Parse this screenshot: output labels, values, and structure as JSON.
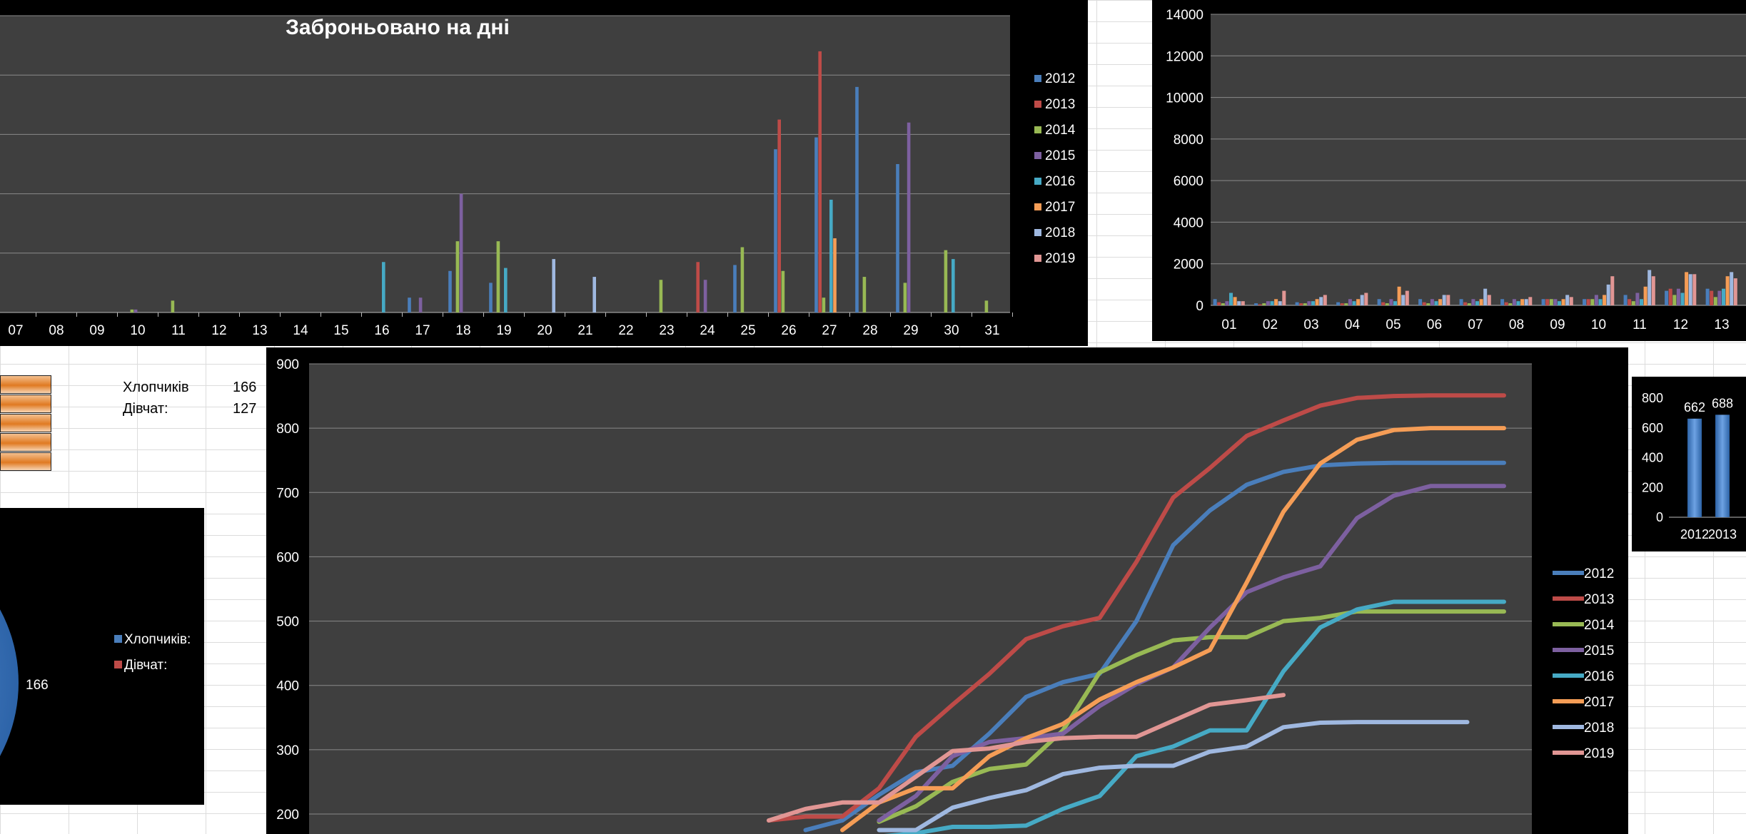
{
  "colors": {
    "2012": "#4a7ebb",
    "2013": "#be4b48",
    "2014": "#98b954",
    "2015": "#7d60a0",
    "2016": "#46aac5",
    "2017": "#f59d56",
    "2018": "#9fb8e0",
    "2019": "#e19694",
    "plot_bg": "#3f3f3f",
    "panel_bg": "#000000",
    "grid": "#8a8a8a"
  },
  "sheet": {
    "boys_label": "Хлопчиків",
    "boys_value": "166",
    "girls_label": "Дівчат:",
    "girls_value": "127"
  },
  "chart_data": [
    {
      "id": "days_chart",
      "type": "bar",
      "title": "Заброньовано на дні",
      "categories": [
        "07",
        "08",
        "09",
        "10",
        "11",
        "12",
        "13",
        "14",
        "15",
        "16",
        "17",
        "18",
        "19",
        "20",
        "21",
        "22",
        "23",
        "24",
        "25",
        "26",
        "27",
        "28",
        "29",
        "30",
        "31"
      ],
      "legend_position": "right",
      "grid": true,
      "series": [
        {
          "name": "2012",
          "values": [
            0,
            0,
            0,
            0,
            0,
            0,
            0,
            0,
            0,
            0,
            5,
            14,
            10,
            0,
            0,
            0,
            0,
            0,
            16,
            55,
            59,
            76,
            50,
            0,
            0
          ]
        },
        {
          "name": "2013",
          "values": [
            0,
            0,
            0,
            0,
            0,
            0,
            0,
            0,
            0,
            0,
            0,
            0,
            0,
            0,
            0,
            0,
            0,
            17,
            0,
            65,
            88,
            0,
            0,
            0,
            0
          ]
        },
        {
          "name": "2014",
          "values": [
            0,
            0,
            0,
            1,
            4,
            0,
            0,
            0,
            0,
            0,
            0,
            24,
            24,
            0,
            0,
            0,
            11,
            0,
            22,
            14,
            5,
            12,
            10,
            21,
            4
          ]
        },
        {
          "name": "2015",
          "values": [
            0,
            0,
            0,
            1,
            0,
            0,
            0,
            0,
            0,
            0,
            5,
            40,
            0,
            0,
            0,
            0,
            0,
            11,
            0,
            0,
            0,
            0,
            64,
            0,
            0
          ]
        },
        {
          "name": "2016",
          "values": [
            0,
            0,
            0,
            0,
            0,
            0,
            0,
            0,
            0,
            17,
            0,
            0,
            15,
            0,
            0,
            0,
            0,
            0,
            0,
            0,
            38,
            0,
            0,
            18,
            0
          ]
        },
        {
          "name": "2017",
          "values": [
            0,
            0,
            0,
            0,
            0,
            0,
            0,
            0,
            0,
            0,
            0,
            0,
            0,
            0,
            0,
            0,
            0,
            0,
            0,
            0,
            25,
            0,
            0,
            0,
            0
          ]
        },
        {
          "name": "2018",
          "values": [
            0,
            0,
            0,
            0,
            0,
            0,
            0,
            0,
            0,
            0,
            0,
            0,
            0,
            18,
            12,
            0,
            0,
            0,
            0,
            0,
            0,
            0,
            0,
            0,
            0
          ]
        },
        {
          "name": "2019",
          "values": [
            0,
            0,
            0,
            0,
            0,
            0,
            0,
            0,
            0,
            0,
            0,
            0,
            0,
            0,
            0,
            0,
            0,
            0,
            0,
            0,
            0,
            0,
            0,
            0,
            0
          ]
        }
      ]
    },
    {
      "id": "months_chart",
      "type": "bar",
      "title": "",
      "ylim": [
        0,
        14000
      ],
      "yticks": [
        0,
        2000,
        4000,
        6000,
        8000,
        10000,
        12000,
        14000
      ],
      "categories": [
        "01",
        "02",
        "03",
        "04",
        "05",
        "06",
        "07",
        "08",
        "09",
        "10",
        "11",
        "12",
        "13"
      ],
      "grid": true,
      "series": [
        {
          "name": "2012",
          "values": [
            300,
            100,
            150,
            150,
            300,
            300,
            300,
            300,
            300,
            300,
            500,
            700,
            800
          ]
        },
        {
          "name": "2013",
          "values": [
            150,
            50,
            100,
            100,
            150,
            150,
            150,
            150,
            300,
            300,
            300,
            800,
            700
          ]
        },
        {
          "name": "2014",
          "values": [
            100,
            100,
            100,
            100,
            100,
            100,
            100,
            100,
            300,
            300,
            200,
            500,
            400
          ]
        },
        {
          "name": "2015",
          "values": [
            200,
            200,
            200,
            300,
            300,
            300,
            300,
            300,
            300,
            500,
            600,
            800,
            700
          ]
        },
        {
          "name": "2016",
          "values": [
            600,
            200,
            200,
            200,
            200,
            200,
            200,
            200,
            200,
            300,
            300,
            600,
            800
          ]
        },
        {
          "name": "2017",
          "values": [
            400,
            300,
            300,
            300,
            900,
            300,
            300,
            300,
            300,
            500,
            900,
            1600,
            1400
          ]
        },
        {
          "name": "2018",
          "values": [
            200,
            200,
            400,
            500,
            500,
            500,
            800,
            300,
            500,
            1000,
            1700,
            1500,
            1600
          ]
        },
        {
          "name": "2019",
          "values": [
            200,
            700,
            500,
            600,
            700,
            500,
            500,
            400,
            400,
            1400,
            1400,
            1500,
            1300
          ]
        }
      ]
    },
    {
      "id": "cumulative_chart",
      "type": "line",
      "title": "",
      "ylim": [
        200,
        900
      ],
      "yticks": [
        200,
        300,
        400,
        500,
        600,
        700,
        800,
        900
      ],
      "legend_position": "right",
      "grid": true,
      "x_count": 33,
      "series": [
        {
          "name": "2012",
          "start": 13,
          "values": [
            175,
            190,
            230,
            265,
            275,
            325,
            382,
            405,
            418,
            500,
            618,
            672,
            712,
            732,
            742,
            745,
            746,
            746,
            746,
            746
          ]
        },
        {
          "name": "2013",
          "start": 12,
          "values": [
            190,
            196,
            196,
            240,
            320,
            370,
            418,
            472,
            492,
            505,
            592,
            692,
            738,
            788,
            812,
            835,
            847,
            850,
            851,
            851,
            851
          ]
        },
        {
          "name": "2014",
          "start": 15,
          "values": [
            188,
            212,
            250,
            270,
            277,
            330,
            420,
            447,
            470,
            475,
            475,
            500,
            505,
            515,
            515,
            515,
            515,
            515
          ]
        },
        {
          "name": "2015",
          "start": 15,
          "values": [
            190,
            228,
            290,
            312,
            318,
            325,
            368,
            402,
            428,
            490,
            545,
            568,
            585,
            660,
            695,
            710,
            710,
            710
          ]
        },
        {
          "name": "2016",
          "start": 15,
          "values": [
            165,
            170,
            180,
            180,
            182,
            208,
            228,
            290,
            305,
            330,
            330,
            422,
            490,
            518,
            530,
            530,
            530,
            530
          ]
        },
        {
          "name": "2017",
          "start": 14,
          "values": [
            175,
            218,
            240,
            240,
            290,
            318,
            340,
            378,
            405,
            428,
            455,
            560,
            670,
            745,
            782,
            797,
            800,
            800,
            800
          ]
        },
        {
          "name": "2018",
          "start": 15,
          "values": [
            175,
            175,
            210,
            225,
            237,
            262,
            272,
            275,
            275,
            297,
            305,
            335,
            342,
            343,
            343,
            343,
            343
          ]
        },
        {
          "name": "2019",
          "start": 12,
          "values": [
            190,
            208,
            218,
            218,
            258,
            298,
            302,
            312,
            318,
            320,
            320,
            345,
            370,
            377,
            385
          ]
        }
      ]
    },
    {
      "id": "gender_pie",
      "type": "pie",
      "title": "",
      "legend_position": "right",
      "labels": [
        "Хлопчиків:",
        "Дівчат:"
      ],
      "values": [
        166,
        127
      ],
      "data_labels": [
        "166"
      ]
    },
    {
      "id": "totals_chart",
      "type": "bar",
      "title": "",
      "ylim": [
        0,
        800
      ],
      "yticks": [
        0,
        200,
        400,
        600,
        800
      ],
      "categories": [
        "2012",
        "2013"
      ],
      "values": [
        662,
        688
      ],
      "data_labels": [
        "662",
        "688"
      ]
    }
  ]
}
